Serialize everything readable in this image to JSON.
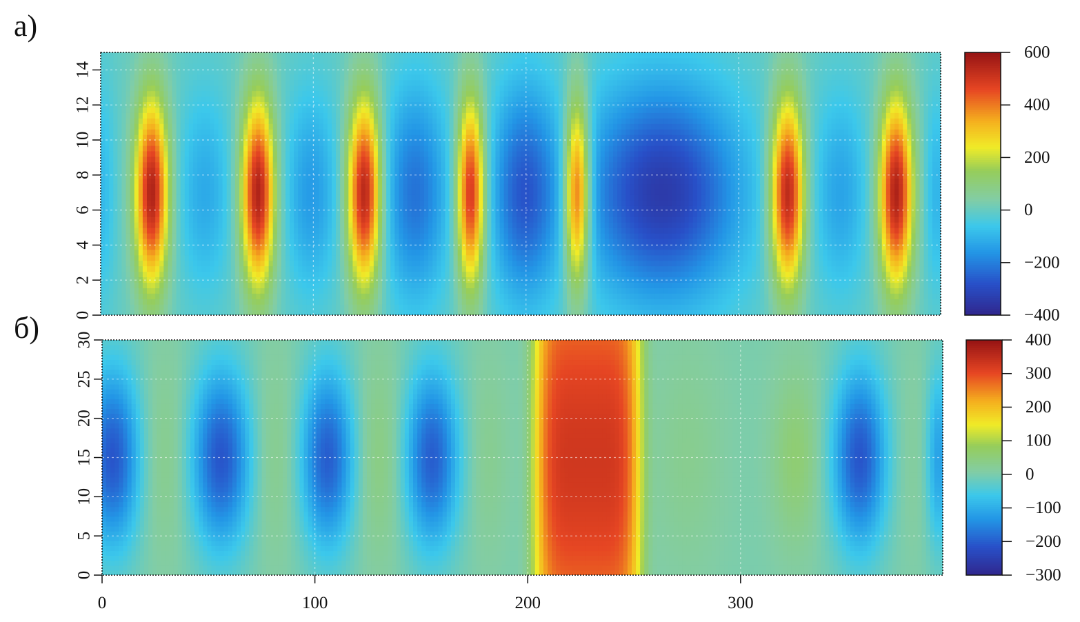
{
  "chart_data": [
    {
      "type": "heatmap",
      "panel_label": "а)",
      "title": "",
      "xlabel": "",
      "ylabel": "",
      "xlim": [
        0,
        395
      ],
      "ylim": [
        0,
        15
      ],
      "y_ticks": [
        0,
        2,
        4,
        6,
        8,
        10,
        12,
        14
      ],
      "x_ticks": [],
      "grid": true,
      "y_center": 7,
      "colorbar": {
        "range": [
          -400,
          600
        ],
        "ticks": [
          -400,
          -200,
          0,
          200,
          400,
          600
        ],
        "tick_labels": [
          "−400",
          "−200",
          "0",
          "200",
          "400",
          "600"
        ]
      },
      "bands": [
        {
          "x": 0,
          "width": 5,
          "peak": -90,
          "y_spread": 7
        },
        {
          "x": 24,
          "width": 5.5,
          "peak": 560,
          "y_spread": 5.6
        },
        {
          "x": 49,
          "width": 9,
          "peak": -120,
          "y_spread": 6
        },
        {
          "x": 74,
          "width": 5.5,
          "peak": 560,
          "y_spread": 5.6
        },
        {
          "x": 99,
          "width": 9,
          "peak": -150,
          "y_spread": 6
        },
        {
          "x": 124,
          "width": 5.5,
          "peak": 560,
          "y_spread": 5.6
        },
        {
          "x": 148,
          "width": 11,
          "peak": -220,
          "y_spread": 6.5
        },
        {
          "x": 174,
          "width": 4.5,
          "peak": 520,
          "y_spread": 5.6
        },
        {
          "x": 199,
          "width": 11,
          "peak": -260,
          "y_spread": 6.5
        },
        {
          "x": 224,
          "width": 4.2,
          "peak": 500,
          "y_spread": 5.6
        },
        {
          "x": 264,
          "width": 26,
          "peak": -340,
          "y_spread": 6.5
        },
        {
          "x": 323,
          "width": 5.5,
          "peak": 560,
          "y_spread": 5.6
        },
        {
          "x": 348,
          "width": 9,
          "peak": -130,
          "y_spread": 6
        },
        {
          "x": 374,
          "width": 5.5,
          "peak": 560,
          "y_spread": 5.6
        },
        {
          "x": 393,
          "width": 4,
          "peak": -100,
          "y_spread": 6
        }
      ]
    },
    {
      "type": "heatmap",
      "panel_label": "б)",
      "title": "",
      "xlabel": "",
      "ylabel": "",
      "xlim": [
        0,
        395
      ],
      "ylim": [
        0,
        30
      ],
      "y_ticks": [
        0,
        5,
        10,
        15,
        20,
        25,
        30
      ],
      "x_ticks": [
        0,
        100,
        200,
        300
      ],
      "grid": true,
      "y_center": 15,
      "colorbar": {
        "range": [
          -300,
          400
        ],
        "ticks": [
          -300,
          -200,
          -100,
          0,
          100,
          200,
          300,
          400
        ],
        "tick_labels": [
          "−300",
          "−200",
          "−100",
          "0",
          "100",
          "200",
          "300",
          "400"
        ]
      },
      "bands": [
        {
          "x": 5,
          "width": 9,
          "peak": -210,
          "y_spread": 12
        },
        {
          "x": 30,
          "width": 8,
          "peak": 40,
          "y_spread": 14
        },
        {
          "x": 56,
          "width": 10,
          "peak": -210,
          "y_spread": 12
        },
        {
          "x": 81,
          "width": 8,
          "peak": 40,
          "y_spread": 14
        },
        {
          "x": 106,
          "width": 9,
          "peak": -200,
          "y_spread": 12
        },
        {
          "x": 130,
          "width": 8,
          "peak": 50,
          "y_spread": 14
        },
        {
          "x": 155,
          "width": 9,
          "peak": -200,
          "y_spread": 12
        },
        {
          "x": 181,
          "width": 7,
          "peak": 30,
          "y_spread": 14
        },
        {
          "x": 228,
          "width": 23,
          "peak": 330,
          "y_spread": 40,
          "flat": true
        },
        {
          "x": 275,
          "width": 12,
          "peak": 30,
          "y_spread": 16
        },
        {
          "x": 326,
          "width": 8,
          "peak": 60,
          "y_spread": 12
        },
        {
          "x": 356,
          "width": 9,
          "peak": -210,
          "y_spread": 12
        },
        {
          "x": 380,
          "width": 7,
          "peak": 20,
          "y_spread": 14
        },
        {
          "x": 393,
          "width": 4,
          "peak": -120,
          "y_spread": 12
        }
      ]
    }
  ]
}
